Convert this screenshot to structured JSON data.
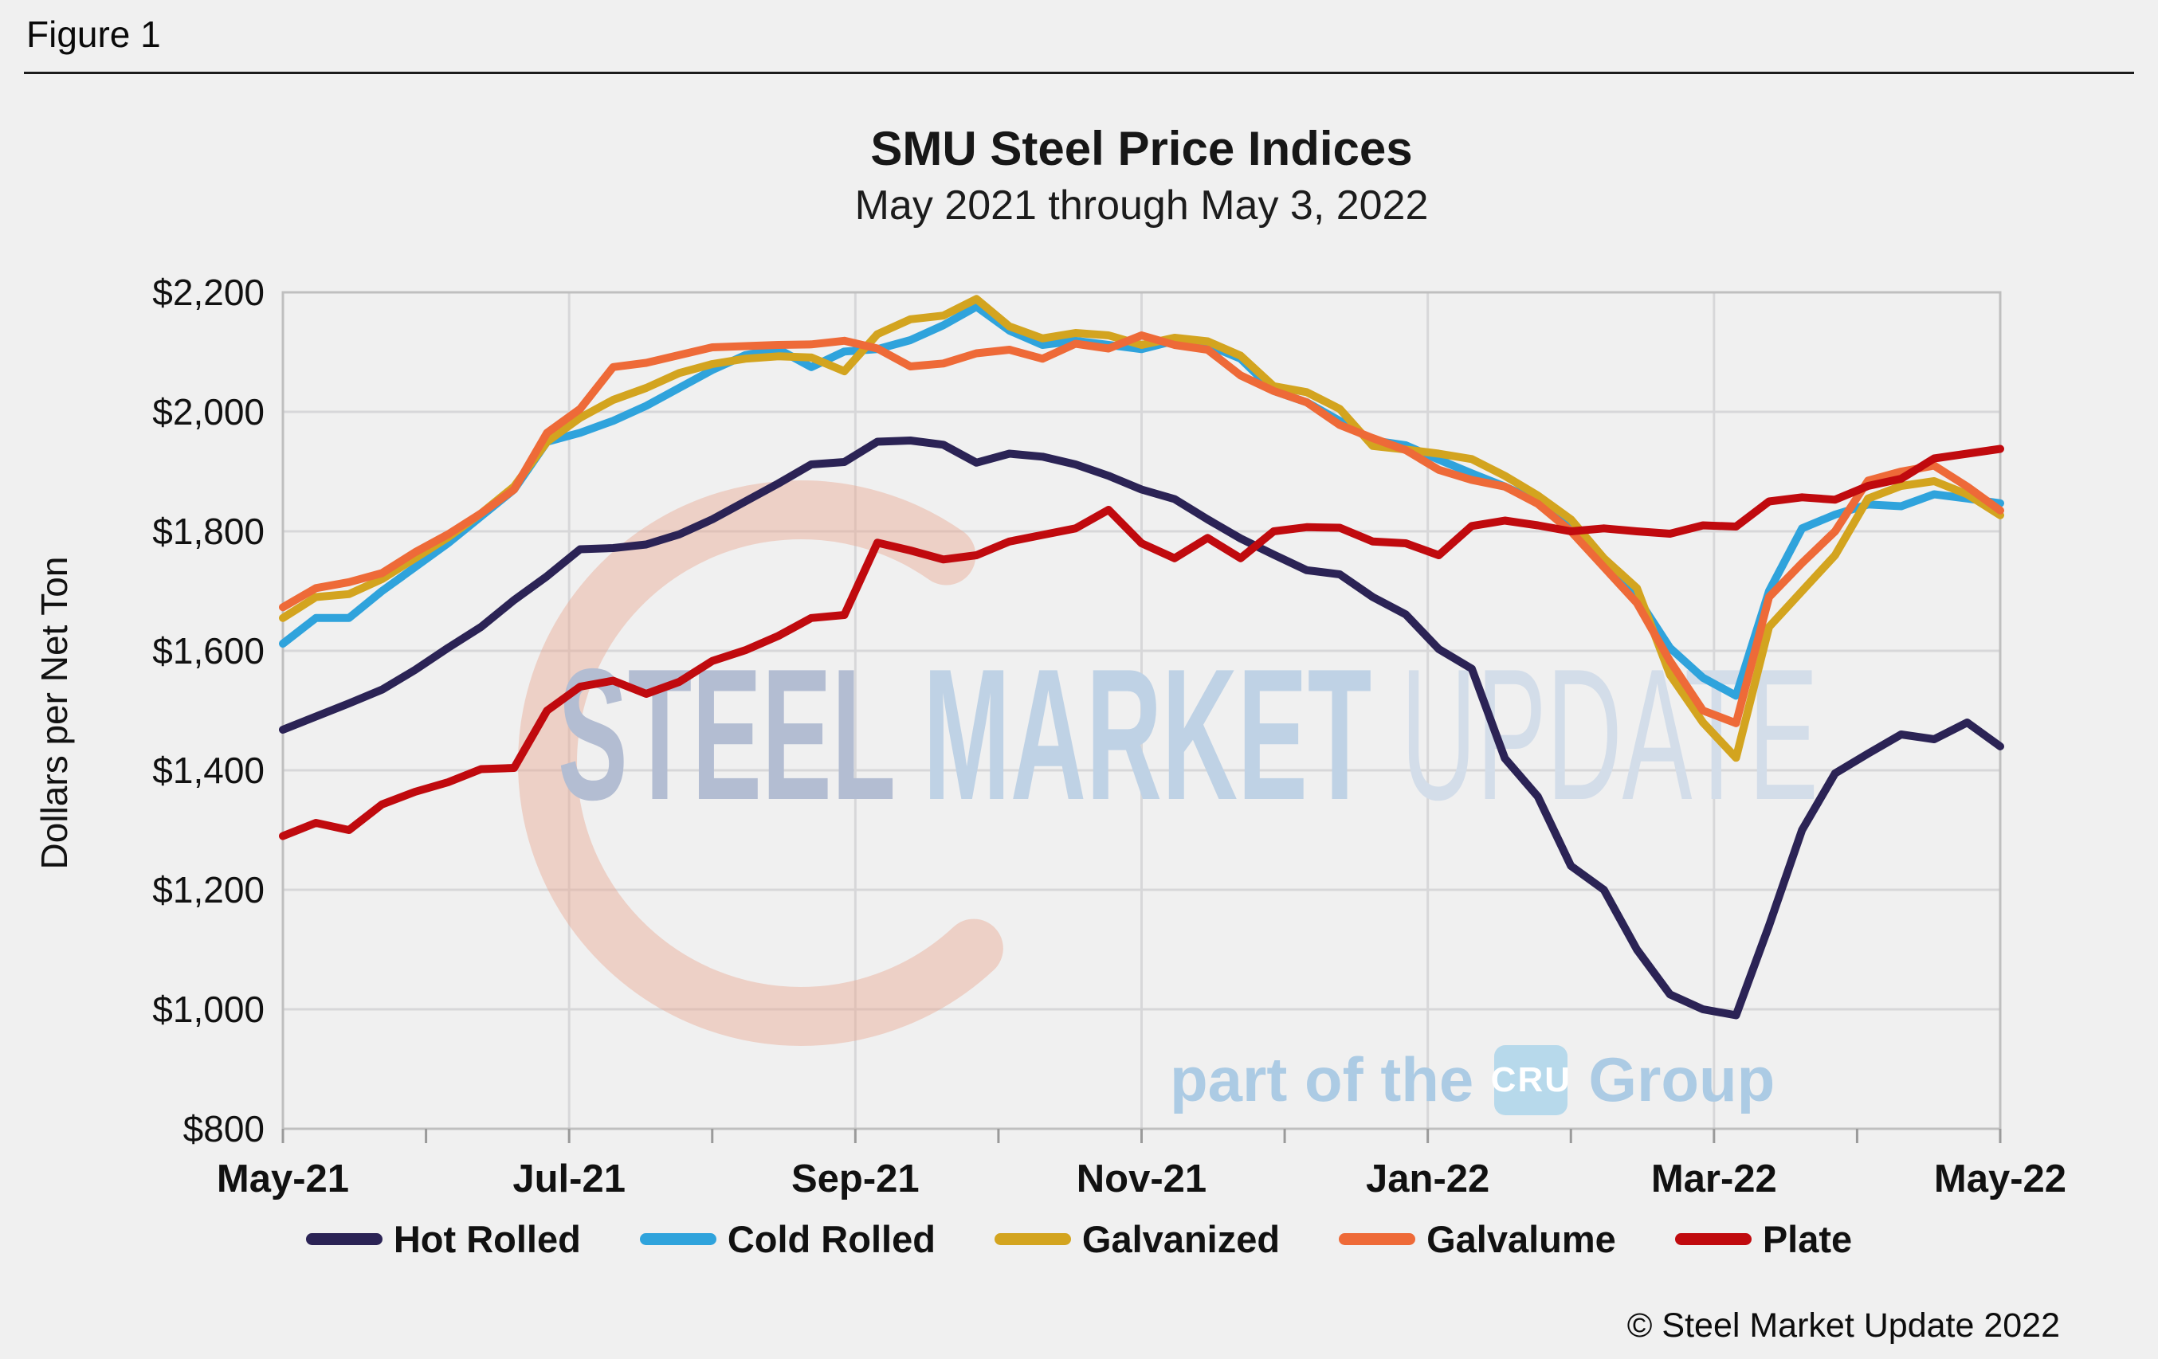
{
  "figure_label": "Figure 1",
  "header": {
    "title": "SMU Steel Price Indices",
    "subtitle": "May 2021 through May 3, 2022"
  },
  "watermark": {
    "word1": "STEEL",
    "word2": "MARKET",
    "word3": "UPDATE",
    "tagline_prefix": "part of the",
    "cru": "CRU",
    "tagline_suffix": "Group",
    "crescent_color": "#e9a58d"
  },
  "copyright": "© Steel Market Update 2022",
  "chart_data": {
    "type": "line",
    "title": "SMU Steel Price Indices",
    "subtitle": "May 2021 through May 3, 2022",
    "ylabel": "Dollars per Net Ton",
    "ylim": [
      800,
      2200
    ],
    "grid": "both",
    "legend_position": "bottom",
    "x_description": "weekly observations from May 2021 through May 3 2022",
    "x_tick_labels": [
      "May-21",
      "Jul-21",
      "Sep-21",
      "Nov-21",
      "Jan-22",
      "Mar-22",
      "May-22"
    ],
    "y_ticks": [
      {
        "label": "$2,200",
        "value": 2200
      },
      {
        "label": "$2,000",
        "value": 2000
      },
      {
        "label": "$1,800",
        "value": 1800
      },
      {
        "label": "$1,600",
        "value": 1600
      },
      {
        "label": "$1,400",
        "value": 1400
      },
      {
        "label": "$1,200",
        "value": 1200
      },
      {
        "label": "$1,000",
        "value": 1000
      },
      {
        "label": "$800",
        "value": 800
      }
    ],
    "series": [
      {
        "name": "Hot Rolled",
        "color": "#2b2355",
        "values": [
          1468,
          1490,
          1512,
          1535,
          1568,
          1605,
          1640,
          1685,
          1725,
          1770,
          1772,
          1778,
          1795,
          1820,
          1850,
          1880,
          1912,
          1916,
          1950,
          1952,
          1945,
          1915,
          1930,
          1925,
          1912,
          1893,
          1870,
          1854,
          1820,
          1788,
          1761,
          1735,
          1728,
          1690,
          1661,
          1603,
          1570,
          1420,
          1356,
          1240,
          1200,
          1100,
          1025,
          1000,
          990,
          1140,
          1300,
          1395,
          1428,
          1460,
          1452,
          1480,
          1440
        ]
      },
      {
        "name": "Cold Rolled",
        "color": "#2fa3dc",
        "values": [
          1612,
          1655,
          1655,
          1700,
          1740,
          1780,
          1825,
          1870,
          1950,
          1965,
          1985,
          2010,
          2040,
          2070,
          2095,
          2105,
          2075,
          2101,
          2105,
          2120,
          2145,
          2176,
          2136,
          2112,
          2119,
          2112,
          2105,
          2119,
          2112,
          2089,
          2035,
          2016,
          1985,
          1952,
          1944,
          1920,
          1897,
          1875,
          1850,
          1810,
          1745,
          1690,
          1605,
          1555,
          1525,
          1700,
          1805,
          1828,
          1845,
          1842,
          1862,
          1855,
          1847
        ]
      },
      {
        "name": "Galvanized",
        "color": "#d3a41f",
        "values": [
          1655,
          1690,
          1695,
          1720,
          1755,
          1790,
          1830,
          1875,
          1950,
          1990,
          2020,
          2040,
          2065,
          2080,
          2089,
          2093,
          2091,
          2068,
          2130,
          2155,
          2161,
          2189,
          2143,
          2123,
          2132,
          2128,
          2112,
          2124,
          2118,
          2094,
          2043,
          2033,
          2005,
          1943,
          1937,
          1930,
          1921,
          1893,
          1860,
          1820,
          1755,
          1705,
          1560,
          1480,
          1421,
          1640,
          1700,
          1760,
          1855,
          1876,
          1884,
          1862,
          1827
        ]
      },
      {
        "name": "Galvalume",
        "color": "#ee6a38",
        "values": [
          1673,
          1705,
          1715,
          1730,
          1765,
          1795,
          1830,
          1870,
          1965,
          2005,
          2075,
          2082,
          2095,
          2108,
          2110,
          2112,
          2113,
          2119,
          2106,
          2076,
          2081,
          2098,
          2104,
          2089,
          2114,
          2106,
          2128,
          2112,
          2104,
          2061,
          2035,
          2016,
          1978,
          1956,
          1936,
          1903,
          1886,
          1875,
          1846,
          1800,
          1740,
          1680,
          1583,
          1500,
          1479,
          1690,
          1747,
          1800,
          1885,
          1900,
          1910,
          1875,
          1835
        ]
      },
      {
        "name": "Plate",
        "color": "#c00a0e",
        "values": [
          1290,
          1312,
          1300,
          1343,
          1364,
          1380,
          1402,
          1404,
          1500,
          1540,
          1550,
          1528,
          1548,
          1583,
          1601,
          1625,
          1655,
          1660,
          1781,
          1768,
          1753,
          1760,
          1783,
          1794,
          1805,
          1836,
          1780,
          1755,
          1789,
          1755,
          1800,
          1807,
          1806,
          1783,
          1780,
          1760,
          1809,
          1818,
          1810,
          1800,
          1805,
          1800,
          1796,
          1810,
          1808,
          1850,
          1857,
          1853,
          1876,
          1888,
          1922,
          1930,
          1938
        ]
      }
    ]
  }
}
